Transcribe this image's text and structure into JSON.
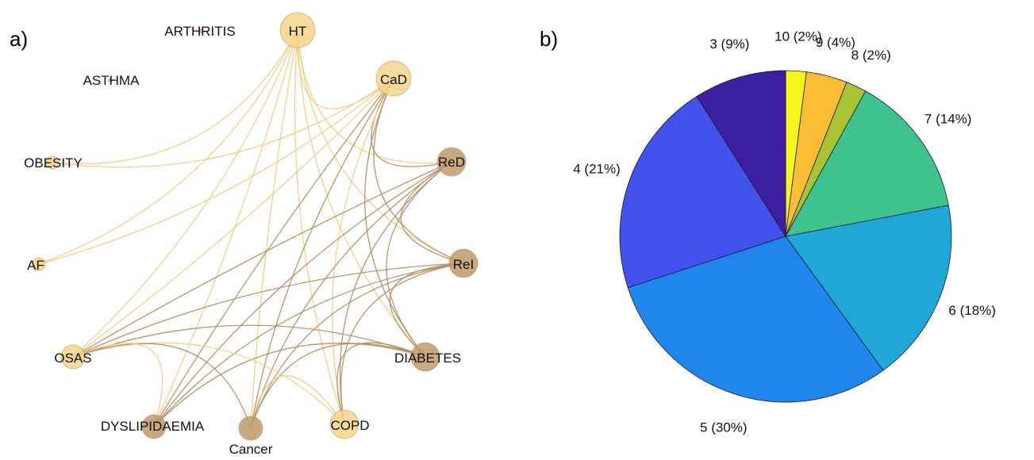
{
  "panel_a": {
    "label": "a)",
    "nodes": [
      {
        "id": "HT",
        "label": "HT",
        "size": "large",
        "color": "#f7d58a"
      },
      {
        "id": "CaD",
        "label": "CaD",
        "size": "large",
        "color": "#f7d58a"
      },
      {
        "id": "ReD",
        "label": "ReD",
        "size": "medium",
        "color": "#c09a6b"
      },
      {
        "id": "ReI",
        "label": "ReI",
        "size": "medium",
        "color": "#c09a6b"
      },
      {
        "id": "DIABETES",
        "label": "DIABETES",
        "size": "medium",
        "color": "#c09a6b"
      },
      {
        "id": "COPD",
        "label": "COPD",
        "size": "medium",
        "color": "#f7d58a"
      },
      {
        "id": "Cancer",
        "label": "Cancer",
        "size": "small",
        "color": "#c09a6b"
      },
      {
        "id": "DYSLIPIDAEMIA",
        "label": "DYSLIPIDAEMIA",
        "size": "small",
        "color": "#c09a6b"
      },
      {
        "id": "OSAS",
        "label": "OSAS",
        "size": "small",
        "color": "#f7d58a"
      },
      {
        "id": "AF",
        "label": "AF",
        "size": "tiny",
        "color": "#f7d58a"
      },
      {
        "id": "OBESITY",
        "label": "OBESITY",
        "size": "tiny",
        "color": "#f7d58a"
      },
      {
        "id": "ASTHMA",
        "label": "ASTHMA",
        "size": "dot",
        "color": "#e2a95b"
      },
      {
        "id": "ARTHRITIS",
        "label": "ARTHRITIS",
        "size": "dot",
        "color": "#e2a95b"
      }
    ],
    "edges": [
      {
        "from": "HT",
        "to": "CaD",
        "tone": "light"
      },
      {
        "from": "HT",
        "to": "ReD",
        "tone": "light"
      },
      {
        "from": "HT",
        "to": "ReI",
        "tone": "light"
      },
      {
        "from": "HT",
        "to": "DIABETES",
        "tone": "light"
      },
      {
        "from": "HT",
        "to": "COPD",
        "tone": "light"
      },
      {
        "from": "HT",
        "to": "Cancer",
        "tone": "light"
      },
      {
        "from": "HT",
        "to": "DYSLIPIDAEMIA",
        "tone": "light"
      },
      {
        "from": "HT",
        "to": "OSAS",
        "tone": "light"
      },
      {
        "from": "HT",
        "to": "AF",
        "tone": "light"
      },
      {
        "from": "HT",
        "to": "OBESITY",
        "tone": "light"
      },
      {
        "from": "CaD",
        "to": "ReD",
        "tone": "dark"
      },
      {
        "from": "CaD",
        "to": "ReI",
        "tone": "dark"
      },
      {
        "from": "CaD",
        "to": "DIABETES",
        "tone": "dark"
      },
      {
        "from": "CaD",
        "to": "COPD",
        "tone": "light"
      },
      {
        "from": "CaD",
        "to": "Cancer",
        "tone": "dark"
      },
      {
        "from": "CaD",
        "to": "DYSLIPIDAEMIA",
        "tone": "dark"
      },
      {
        "from": "CaD",
        "to": "OSAS",
        "tone": "light"
      },
      {
        "from": "CaD",
        "to": "AF",
        "tone": "light"
      },
      {
        "from": "CaD",
        "to": "OBESITY",
        "tone": "light"
      },
      {
        "from": "ReD",
        "to": "ReI",
        "tone": "dark"
      },
      {
        "from": "ReD",
        "to": "DIABETES",
        "tone": "dark"
      },
      {
        "from": "ReD",
        "to": "COPD",
        "tone": "dark"
      },
      {
        "from": "ReD",
        "to": "Cancer",
        "tone": "dark"
      },
      {
        "from": "ReD",
        "to": "DYSLIPIDAEMIA",
        "tone": "dark"
      },
      {
        "from": "ReD",
        "to": "OSAS",
        "tone": "dark"
      },
      {
        "from": "ReI",
        "to": "DIABETES",
        "tone": "dark"
      },
      {
        "from": "ReI",
        "to": "COPD",
        "tone": "dark"
      },
      {
        "from": "ReI",
        "to": "Cancer",
        "tone": "dark"
      },
      {
        "from": "ReI",
        "to": "DYSLIPIDAEMIA",
        "tone": "dark"
      },
      {
        "from": "ReI",
        "to": "OSAS",
        "tone": "dark"
      },
      {
        "from": "DIABETES",
        "to": "COPD",
        "tone": "dark"
      },
      {
        "from": "DIABETES",
        "to": "Cancer",
        "tone": "dark"
      },
      {
        "from": "DIABETES",
        "to": "DYSLIPIDAEMIA",
        "tone": "dark"
      },
      {
        "from": "DIABETES",
        "to": "OSAS",
        "tone": "dark"
      },
      {
        "from": "COPD",
        "to": "Cancer",
        "tone": "light"
      },
      {
        "from": "COPD",
        "to": "OSAS",
        "tone": "light"
      },
      {
        "from": "Cancer",
        "to": "OSAS",
        "tone": "dark"
      },
      {
        "from": "DYSLIPIDAEMIA",
        "to": "OSAS",
        "tone": "light"
      }
    ],
    "edge_colors": {
      "light": "#f5c97d",
      "dark": "#b38b5d"
    }
  },
  "chart_data": {
    "type": "pie",
    "title": "",
    "panel_label": "b)",
    "slices": [
      {
        "label": "10 (2%)",
        "category": "10",
        "value": 2,
        "color": "#f5f51a"
      },
      {
        "label": "9 (4%)",
        "category": "9",
        "value": 4,
        "color": "#f9bd33"
      },
      {
        "label": "8 (2%)",
        "category": "8",
        "value": 2,
        "color": "#a8c433"
      },
      {
        "label": "7 (14%)",
        "category": "7",
        "value": 14,
        "color": "#3ec38f"
      },
      {
        "label": "6 (18%)",
        "category": "6",
        "value": 18,
        "color": "#1fa8d6"
      },
      {
        "label": "5 (30%)",
        "category": "5",
        "value": 30,
        "color": "#1f86ee"
      },
      {
        "label": "4 (21%)",
        "category": "4",
        "value": 21,
        "color": "#4250ec"
      },
      {
        "label": "3 (9%)",
        "category": "3",
        "value": 9,
        "color": "#3a1fa0"
      }
    ]
  }
}
